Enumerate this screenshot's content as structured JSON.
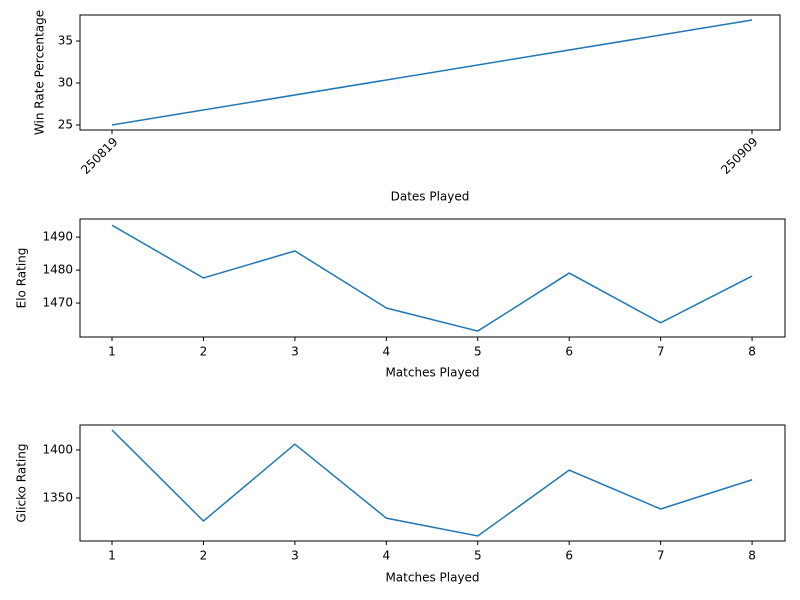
{
  "chart_data": [
    {
      "type": "line",
      "ylabel": "Win Rate Percentage",
      "xlabel": "Dates Played",
      "categories": [
        "250819",
        "250909"
      ],
      "series": [
        {
          "color": "#1f77b4",
          "values": [
            25,
            37.5
          ]
        }
      ],
      "ylim": [
        24.4,
        38.1
      ],
      "yticks": [
        25,
        30,
        35
      ]
    },
    {
      "type": "line",
      "ylabel": "Elo Rating",
      "xlabel": "Matches Played",
      "x": [
        1,
        2,
        3,
        4,
        5,
        6,
        7,
        8
      ],
      "series": [
        {
          "color": "#1f77b4",
          "values": [
            1493.6,
            1477.6,
            1485.8,
            1468.5,
            1461.5,
            1479.1,
            1464.0,
            1478.2
          ]
        }
      ],
      "xlim": [
        0.65,
        8.36
      ],
      "xticks": [
        1,
        2,
        3,
        4,
        5,
        6,
        7,
        8
      ],
      "ylim": [
        1459.7,
        1495.5
      ],
      "yticks": [
        1470,
        1480,
        1490
      ]
    },
    {
      "type": "line",
      "ylabel": "Glicko Rating",
      "xlabel": "Matches Played",
      "x": [
        1,
        2,
        3,
        4,
        5,
        6,
        7,
        8
      ],
      "series": [
        {
          "color": "#1f77b4",
          "values": [
            1420.8,
            1326,
            1406,
            1329,
            1310.4,
            1379,
            1338.5,
            1369
          ]
        }
      ],
      "xlim": [
        0.65,
        8.36
      ],
      "xticks": [
        1,
        2,
        3,
        4,
        5,
        6,
        7,
        8
      ],
      "ylim": [
        1305.2,
        1426
      ],
      "yticks": [
        1350,
        1400
      ]
    }
  ]
}
